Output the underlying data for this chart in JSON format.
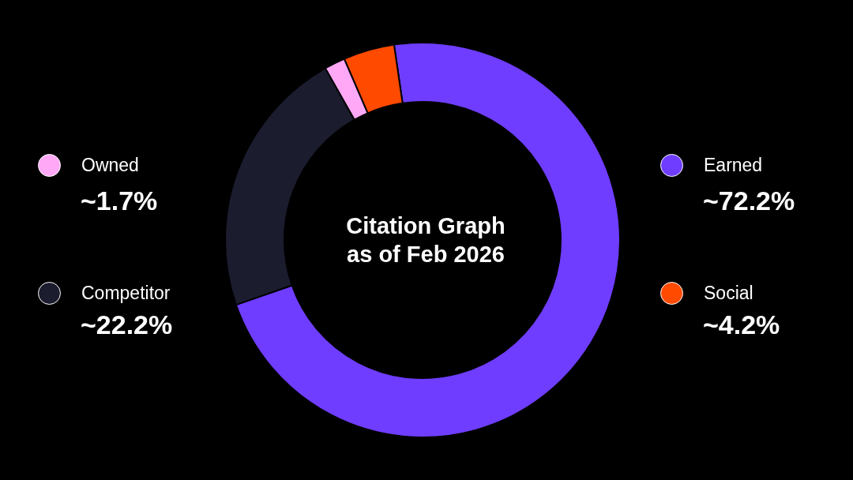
{
  "chart_data": {
    "type": "donut",
    "title": "Citation Graph\nas of Feb 2026",
    "categories": [
      "Earned",
      "Competitor",
      "Owned",
      "Social"
    ],
    "values": [
      72.2,
      22.2,
      1.7,
      4.2
    ],
    "value_labels": [
      "~72.2%",
      "~22.2%",
      "~1.7%",
      "~4.2%"
    ],
    "colors": [
      "#6f3dff",
      "#1c1c2f",
      "#ffa8f5",
      "#ff4a00"
    ],
    "legend": "left"
  }
}
